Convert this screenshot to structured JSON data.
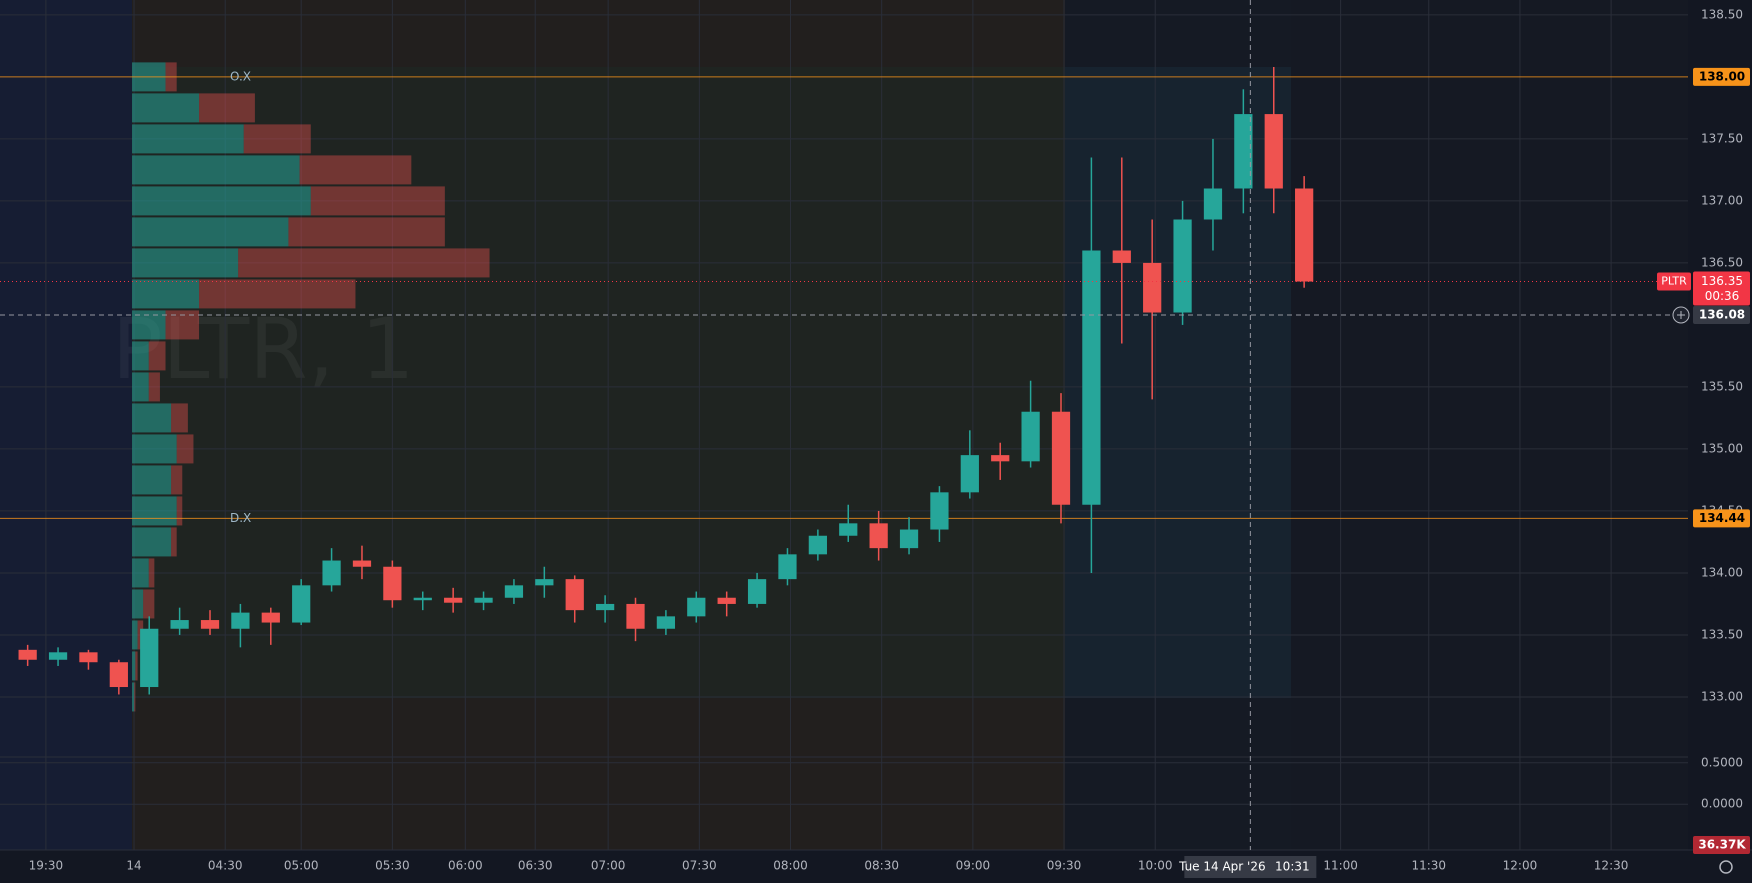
{
  "chart_data": {
    "type": "candlestick",
    "watermark": "PLTR, 1",
    "up_color": "#26a69a",
    "down_color": "#ef5350",
    "xlim": [
      -4.41,
      51.13
    ],
    "ylim": [
      132.54,
      138.62
    ],
    "x": [
      -4,
      -3,
      -2,
      -1,
      0,
      1,
      2,
      3,
      4,
      5,
      6,
      7,
      8,
      9,
      10,
      11,
      12,
      13,
      14,
      15,
      16,
      17,
      18,
      19,
      20,
      21,
      22,
      23,
      24,
      25,
      26,
      27,
      28,
      29,
      30,
      31,
      32,
      33,
      34,
      35,
      36,
      37,
      38
    ],
    "open": [
      133.38,
      133.3,
      133.36,
      133.28,
      133.08,
      133.55,
      133.62,
      133.55,
      133.68,
      133.6,
      133.9,
      134.1,
      134.05,
      133.78,
      133.8,
      133.76,
      133.8,
      133.9,
      133.95,
      133.7,
      133.75,
      133.55,
      133.65,
      133.8,
      133.75,
      133.95,
      134.15,
      134.3,
      134.4,
      134.2,
      134.35,
      134.65,
      134.95,
      134.9,
      135.3,
      134.55,
      136.6,
      136.5,
      136.1,
      136.85,
      137.1,
      137.7,
      137.1
    ],
    "high": [
      133.42,
      133.4,
      133.38,
      133.3,
      133.65,
      133.72,
      133.7,
      133.75,
      133.72,
      133.95,
      134.2,
      134.22,
      134.1,
      133.85,
      133.88,
      133.85,
      133.95,
      134.05,
      133.98,
      133.82,
      133.8,
      133.7,
      133.85,
      133.85,
      134.0,
      134.2,
      134.35,
      134.55,
      134.5,
      134.45,
      134.7,
      135.15,
      135.05,
      135.55,
      135.45,
      137.35,
      137.35,
      136.85,
      137.0,
      137.5,
      137.9,
      138.08,
      137.2
    ],
    "low": [
      133.25,
      133.25,
      133.22,
      133.02,
      133.02,
      133.5,
      133.5,
      133.4,
      133.42,
      133.58,
      133.85,
      133.95,
      133.72,
      133.7,
      133.68,
      133.7,
      133.75,
      133.8,
      133.6,
      133.6,
      133.45,
      133.5,
      133.6,
      133.65,
      133.72,
      133.9,
      134.1,
      134.25,
      134.1,
      134.15,
      134.25,
      134.6,
      134.75,
      134.85,
      134.4,
      134.0,
      135.85,
      135.4,
      136.0,
      136.6,
      136.9,
      136.9,
      136.3
    ],
    "close": [
      133.3,
      133.36,
      133.28,
      133.08,
      133.55,
      133.62,
      133.55,
      133.68,
      133.6,
      133.9,
      134.1,
      134.05,
      133.78,
      133.8,
      133.76,
      133.8,
      133.9,
      133.95,
      133.7,
      133.75,
      133.55,
      133.65,
      133.8,
      133.75,
      133.95,
      134.15,
      134.3,
      134.4,
      134.2,
      134.35,
      134.65,
      134.95,
      134.9,
      135.3,
      134.55,
      136.6,
      136.5,
      136.1,
      136.85,
      137.1,
      137.7,
      137.1,
      136.35
    ],
    "xticks": [
      {
        "value": -2.9,
        "label": "19:30"
      },
      {
        "value": 0,
        "label": "14"
      },
      {
        "value": 3.0,
        "label": "04:30"
      },
      {
        "value": 5.5,
        "label": "05:00"
      },
      {
        "value": 8.5,
        "label": "05:30"
      },
      {
        "value": 10.9,
        "label": "06:00"
      },
      {
        "value": 13.2,
        "label": "06:30"
      },
      {
        "value": 15.6,
        "label": "07:00"
      },
      {
        "value": 18.6,
        "label": "07:30"
      },
      {
        "value": 21.6,
        "label": "08:00"
      },
      {
        "value": 24.6,
        "label": "08:30"
      },
      {
        "value": 27.6,
        "label": "09:00"
      },
      {
        "value": 30.6,
        "label": "09:30"
      },
      {
        "value": 33.6,
        "label": "10:00"
      },
      {
        "value": 39.7,
        "label": "11:00"
      },
      {
        "value": 42.6,
        "label": "11:30"
      },
      {
        "value": 45.6,
        "label": "12:00"
      },
      {
        "value": 48.6,
        "label": "12:30"
      }
    ],
    "yticks": [
      {
        "value": 133,
        "label": "133.00"
      },
      {
        "value": 133.5,
        "label": "133.50"
      },
      {
        "value": 134,
        "label": "134.00"
      },
      {
        "value": 134.5,
        "label": "134.50"
      },
      {
        "value": 135,
        "label": "135.00"
      },
      {
        "value": 135.5,
        "label": "135.50"
      },
      {
        "value": 136.5,
        "label": "136.50"
      },
      {
        "value": 137,
        "label": "137.00"
      },
      {
        "value": 137.5,
        "label": "137.50"
      },
      {
        "value": 138.5,
        "label": "138.50"
      }
    ],
    "grid": true,
    "levels": [
      {
        "name": "O.X",
        "value": 138,
        "value_label": "138.00",
        "color": "#f7931a"
      },
      {
        "name": "D.X",
        "value": 134.44,
        "value_label": "134.44",
        "color": "#f7931a"
      }
    ],
    "last_price": {
      "name": "PLTR",
      "value": 136.35,
      "value_label": "136.35",
      "countdown": "00:36",
      "color": "#f23645"
    },
    "crosshair": {
      "price": 136.08,
      "price_label": "136.08",
      "x": 36.73,
      "date_label": "Tue 14 Apr '26",
      "time_label": "10:31"
    },
    "volume_profile": {
      "levels": [
        138.0,
        137.75,
        137.5,
        137.25,
        137.0,
        136.75,
        136.5,
        136.25,
        136.0,
        135.75,
        135.5,
        135.25,
        135.0,
        134.75,
        134.5,
        134.25,
        134.0,
        133.75,
        133.5,
        133.25,
        133.0
      ],
      "buy": [
        30,
        60,
        100,
        150,
        160,
        140,
        95,
        60,
        30,
        15,
        15,
        35,
        40,
        35,
        40,
        35,
        15,
        10,
        5,
        3,
        2
      ],
      "sell": [
        10,
        50,
        60,
        100,
        120,
        140,
        225,
        140,
        30,
        15,
        10,
        15,
        15,
        10,
        5,
        5,
        5,
        10,
        5,
        2,
        1
      ]
    },
    "lower_pane": {
      "ylim": [
        -0.54,
        0.57
      ],
      "yticks": [
        {
          "value": 0.5,
          "label": "0.5000"
        },
        {
          "value": 0,
          "label": "0.0000"
        }
      ]
    },
    "volume_label": "36.37K"
  }
}
